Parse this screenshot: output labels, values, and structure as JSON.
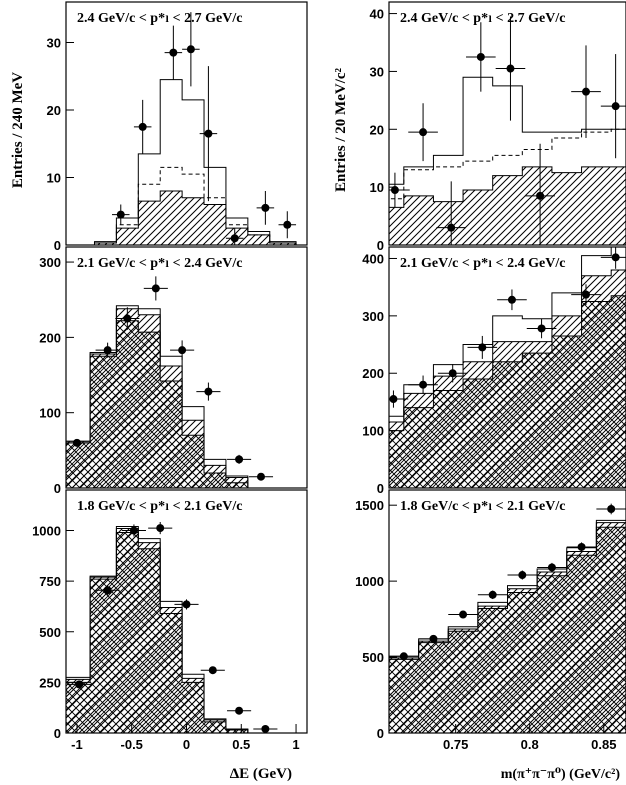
{
  "figure": {
    "left_ylabel": "Entries / 240 MeV",
    "right_ylabel": "Entries / 20 MeV/c²",
    "left_xlabel": "ΔE (GeV)",
    "right_xlabel": "m(π⁺π⁻π⁰) (GeV/c²)"
  },
  "chart_data": [
    {
      "type": "bar",
      "id": "dE-top",
      "title": "2.4 GeV/c < p*ₗ < 2.7 GeV/c",
      "xlabel": "ΔE (GeV)",
      "ylabel": "Entries / 240 MeV",
      "xlim": [
        -1.1,
        1.1
      ],
      "ylim": [
        0,
        36
      ],
      "xticks": [],
      "yticks": [
        0,
        10,
        20,
        30
      ],
      "edges": [
        -1.0,
        -0.84,
        -0.64,
        -0.44,
        -0.24,
        -0.04,
        0.16,
        0.36,
        0.56,
        0.76,
        1.0
      ],
      "series": [
        {
          "role": "total",
          "values": [
            0,
            0.5,
            4,
            13.5,
            24.5,
            21.5,
            11.5,
            4,
            2,
            0.5
          ]
        },
        {
          "role": "dashed",
          "values": [
            0,
            0.3,
            3,
            9,
            11.5,
            10.5,
            7,
            3,
            1.5,
            0.3
          ]
        },
        {
          "role": "hatched",
          "values": [
            0,
            0.3,
            2.5,
            6.5,
            8,
            7,
            6,
            2.5,
            1.5,
            0.3
          ]
        }
      ],
      "points": [
        {
          "x": -0.6,
          "y": 4.5,
          "err": 1.5
        },
        {
          "x": -0.4,
          "y": 17.5,
          "err": 4
        },
        {
          "x": -0.12,
          "y": 28.5,
          "err": 4
        },
        {
          "x": 0.04,
          "y": 29,
          "err": 5.5
        },
        {
          "x": 0.2,
          "y": 16.5,
          "err": 10
        },
        {
          "x": 0.44,
          "y": 1,
          "err": 1.5
        },
        {
          "x": 0.72,
          "y": 5.5,
          "err": 2.5
        },
        {
          "x": 0.92,
          "y": 3,
          "err": 2
        }
      ]
    },
    {
      "type": "bar",
      "id": "dE-mid",
      "title": "2.1 GeV/c < p*ₗ < 2.4 GeV/c",
      "xlabel": "ΔE (GeV)",
      "ylabel": "Entries / 240 MeV",
      "xlim": [
        -1.1,
        1.1
      ],
      "ylim": [
        0,
        320
      ],
      "xticks": [],
      "yticks": [
        0,
        100,
        200,
        300
      ],
      "edges": [
        -1.1,
        -0.88,
        -0.64,
        -0.44,
        -0.24,
        -0.04,
        0.16,
        0.36,
        0.56,
        0.76,
        1.0
      ],
      "series": [
        {
          "role": "total",
          "values": [
            62,
            180,
            242,
            238,
            175,
            108,
            38,
            16,
            0,
            0
          ]
        },
        {
          "role": "hatched",
          "values": [
            62,
            178,
            238,
            230,
            162,
            90,
            30,
            14,
            0,
            0
          ]
        },
        {
          "role": "crosshatch",
          "values": [
            60,
            175,
            222,
            207,
            142,
            70,
            20,
            7,
            0,
            0
          ]
        }
      ],
      "points": [
        {
          "x": -1.0,
          "y": 60,
          "err": 5
        },
        {
          "x": -0.72,
          "y": 183,
          "err": 10
        },
        {
          "x": -0.54,
          "y": 225,
          "err": 15
        },
        {
          "x": -0.28,
          "y": 265,
          "err": 16
        },
        {
          "x": -0.04,
          "y": 183,
          "err": 13
        },
        {
          "x": 0.2,
          "y": 128,
          "err": 12
        },
        {
          "x": 0.48,
          "y": 38,
          "err": 6
        },
        {
          "x": 0.68,
          "y": 15,
          "err": 4
        }
      ]
    },
    {
      "type": "bar",
      "id": "dE-bot",
      "title": "1.8 GeV/c < p*ₗ < 2.1 GeV/c",
      "xlabel": "ΔE (GeV)",
      "ylabel": "Entries / 240 MeV",
      "xlim": [
        -1.1,
        1.1
      ],
      "ylim": [
        0,
        1200
      ],
      "xticks": [
        -1,
        -0.5,
        0,
        0.5,
        1
      ],
      "yticks": [
        0,
        250,
        500,
        750,
        1000
      ],
      "edges": [
        -1.1,
        -0.88,
        -0.64,
        -0.44,
        -0.24,
        -0.04,
        0.16,
        0.36,
        0.56,
        0.76,
        1.0
      ],
      "series": [
        {
          "role": "total",
          "values": [
            275,
            775,
            1020,
            960,
            650,
            290,
            70,
            20,
            0,
            0
          ]
        },
        {
          "role": "hatched",
          "values": [
            265,
            770,
            1010,
            940,
            620,
            270,
            65,
            18,
            0,
            0
          ]
        },
        {
          "role": "crosshatch",
          "values": [
            250,
            760,
            990,
            910,
            590,
            250,
            55,
            15,
            0,
            0
          ]
        }
      ],
      "points": [
        {
          "x": -0.98,
          "y": 240,
          "err": 15
        },
        {
          "x": -0.72,
          "y": 705,
          "err": 25
        },
        {
          "x": -0.48,
          "y": 1000,
          "err": 30
        },
        {
          "x": -0.24,
          "y": 1012,
          "err": 30
        },
        {
          "x": 0.0,
          "y": 635,
          "err": 25
        },
        {
          "x": 0.24,
          "y": 310,
          "err": 18
        },
        {
          "x": 0.48,
          "y": 110,
          "err": 10
        },
        {
          "x": 0.72,
          "y": 20,
          "err": 5
        }
      ]
    },
    {
      "type": "bar",
      "id": "m-top",
      "title": "2.4 GeV/c < p*ₗ < 2.7 GeV/c",
      "xlabel": "m(π⁺π⁻π⁰) (GeV/c²)",
      "ylabel": "Entries / 20 MeV/c²",
      "xlim": [
        0.71,
        0.87
      ],
      "ylim": [
        0,
        42
      ],
      "xticks": [],
      "yticks": [
        0,
        10,
        20,
        30,
        40
      ],
      "edges": [
        0.7,
        0.72,
        0.74,
        0.76,
        0.78,
        0.8,
        0.82,
        0.84,
        0.86,
        0.88
      ],
      "series": [
        {
          "role": "total",
          "values": [
            10.5,
            13.5,
            15.5,
            29,
            27.5,
            19.5,
            19.5,
            20,
            20
          ]
        },
        {
          "role": "dashed",
          "values": [
            8,
            13,
            13.5,
            14.5,
            15.5,
            16.5,
            18.5,
            19.5,
            20
          ]
        },
        {
          "role": "hatched",
          "values": [
            6.5,
            8.5,
            7.5,
            9.5,
            12,
            13.5,
            12.5,
            13.5,
            13.5
          ]
        }
      ],
      "points": [
        {
          "x": 0.714,
          "y": 9.5,
          "err": 3
        },
        {
          "x": 0.733,
          "y": 19.5,
          "err": 5
        },
        {
          "x": 0.752,
          "y": 3,
          "err": 8
        },
        {
          "x": 0.772,
          "y": 32.5,
          "err": 6
        },
        {
          "x": 0.792,
          "y": 30.5,
          "err": 9
        },
        {
          "x": 0.812,
          "y": 8.5,
          "err": 9
        },
        {
          "x": 0.843,
          "y": 26.5,
          "err": 8
        },
        {
          "x": 0.863,
          "y": 24,
          "err": 9
        }
      ]
    },
    {
      "type": "bar",
      "id": "m-mid",
      "title": "2.1 GeV/c < p*ₗ < 2.4 GeV/c",
      "xlabel": "m(π⁺π⁻π⁰) (GeV/c²)",
      "ylabel": "Entries / 20 MeV/c²",
      "xlim": [
        0.71,
        0.87
      ],
      "ylim": [
        0,
        420
      ],
      "xticks": [],
      "yticks": [
        0,
        100,
        200,
        300,
        400
      ],
      "edges": [
        0.7,
        0.72,
        0.74,
        0.76,
        0.78,
        0.8,
        0.82,
        0.84,
        0.86,
        0.88
      ],
      "series": [
        {
          "role": "total",
          "values": [
            125,
            180,
            215,
            250,
            300,
            295,
            340,
            405,
            420
          ]
        },
        {
          "role": "hatched",
          "values": [
            115,
            165,
            195,
            220,
            255,
            255,
            300,
            370,
            380
          ]
        },
        {
          "role": "crosshatch",
          "values": [
            100,
            140,
            170,
            190,
            220,
            235,
            265,
            325,
            335
          ]
        }
      ],
      "points": [
        {
          "x": 0.713,
          "y": 155,
          "err": 15
        },
        {
          "x": 0.733,
          "y": 180,
          "err": 16
        },
        {
          "x": 0.753,
          "y": 200,
          "err": 16
        },
        {
          "x": 0.773,
          "y": 245,
          "err": 20
        },
        {
          "x": 0.793,
          "y": 328,
          "err": 18
        },
        {
          "x": 0.813,
          "y": 278,
          "err": 17
        },
        {
          "x": 0.843,
          "y": 337,
          "err": 18
        },
        {
          "x": 0.863,
          "y": 402,
          "err": 20
        }
      ]
    },
    {
      "type": "bar",
      "id": "m-bot",
      "title": "1.8 GeV/c < p*ₗ < 2.1 GeV/c",
      "xlabel": "m(π⁺π⁻π⁰) (GeV/c²)",
      "ylabel": "Entries / 20 MeV/c²",
      "xlim": [
        0.705,
        0.865
      ],
      "ylim": [
        0,
        1600
      ],
      "xticks": [
        0.75,
        0.8,
        0.85
      ],
      "yticks": [
        0,
        500,
        1000,
        1500
      ],
      "edges": [
        0.705,
        0.725,
        0.745,
        0.765,
        0.785,
        0.805,
        0.825,
        0.845,
        0.865
      ],
      "series": [
        {
          "role": "total",
          "values": [
            505,
            620,
            700,
            860,
            970,
            1080,
            1220,
            1400
          ]
        },
        {
          "role": "hatched",
          "values": [
            495,
            605,
            685,
            835,
            950,
            1060,
            1195,
            1385
          ]
        },
        {
          "role": "crosshatch",
          "values": [
            485,
            595,
            670,
            820,
            925,
            1035,
            1170,
            1355
          ]
        }
      ],
      "points": [
        {
          "x": 0.715,
          "y": 505,
          "err": 20
        },
        {
          "x": 0.735,
          "y": 620,
          "err": 22
        },
        {
          "x": 0.755,
          "y": 780,
          "err": 25
        },
        {
          "x": 0.775,
          "y": 910,
          "err": 28
        },
        {
          "x": 0.795,
          "y": 1040,
          "err": 30
        },
        {
          "x": 0.815,
          "y": 1090,
          "err": 30
        },
        {
          "x": 0.835,
          "y": 1225,
          "err": 30
        },
        {
          "x": 0.855,
          "y": 1475,
          "err": 35
        }
      ]
    }
  ]
}
